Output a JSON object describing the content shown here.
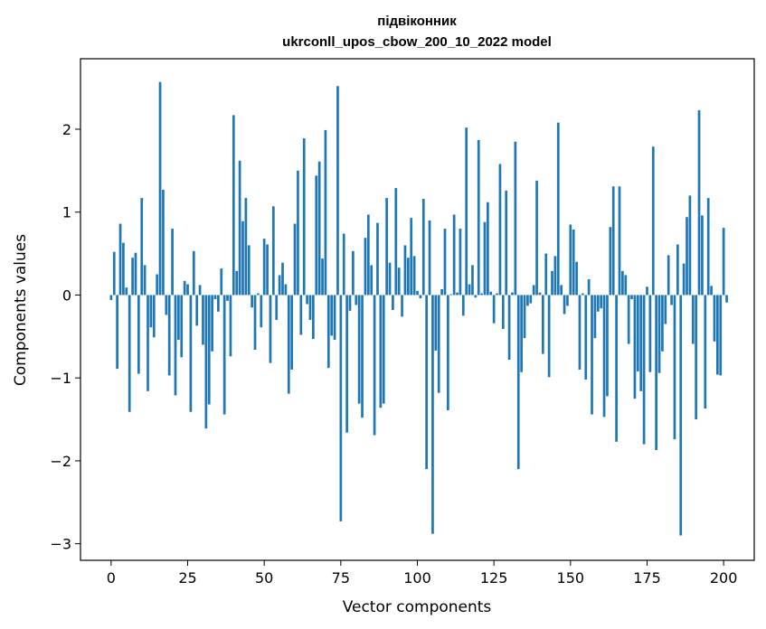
{
  "chart_data": {
    "type": "bar",
    "title_line1": "підвіконник",
    "title_line2": "ukrconll_upos_cbow_200_10_2022 model",
    "xlabel": "Vector components",
    "ylabel": "Components values",
    "xlim": [
      -10,
      210
    ],
    "ylim": [
      -3.2,
      2.85
    ],
    "x_ticks": [
      0,
      25,
      50,
      75,
      100,
      125,
      150,
      175,
      200
    ],
    "x_tick_labels": [
      "0",
      "25",
      "50",
      "75",
      "100",
      "125",
      "150",
      "175",
      "200"
    ],
    "y_ticks": [
      -3,
      -2,
      -1,
      0,
      1,
      2
    ],
    "y_tick_labels": [
      "−3",
      "−2",
      "−1",
      "0",
      "1",
      "2"
    ],
    "bar_color": "#1f77b4",
    "values": [
      -0.06,
      0.52,
      -0.89,
      0.86,
      0.63,
      0.09,
      -1.41,
      0.45,
      0.51,
      -0.95,
      1.17,
      0.36,
      -1.16,
      -0.39,
      -0.51,
      0.25,
      2.57,
      1.27,
      -0.24,
      -0.97,
      0.8,
      -1.21,
      -0.54,
      -0.75,
      0.17,
      0.13,
      -1.41,
      0.53,
      -0.37,
      0.12,
      -0.6,
      -1.61,
      -1.32,
      -0.68,
      -0.05,
      -0.2,
      0.32,
      -1.44,
      -0.07,
      -0.74,
      2.17,
      0.29,
      1.62,
      0.89,
      1.17,
      0.6,
      -0.15,
      -0.66,
      0.02,
      -0.39,
      0.68,
      0.61,
      -0.82,
      1.07,
      -0.3,
      0.24,
      0.39,
      0.13,
      -1.19,
      -0.9,
      0.86,
      1.5,
      -0.48,
      1.89,
      -0.11,
      -0.3,
      -0.53,
      1.44,
      1.61,
      0.44,
      1.99,
      -0.88,
      -0.49,
      -0.54,
      2.52,
      -2.73,
      0.74,
      -1.66,
      -0.19,
      0.53,
      -0.12,
      -1.31,
      -1.48,
      0.69,
      0.97,
      0.36,
      -1.69,
      0.87,
      -1.36,
      -1.31,
      1.17,
      0.39,
      -0.18,
      1.29,
      0.33,
      -0.26,
      0.6,
      0.45,
      0.93,
      0.47,
      0.05,
      -0.04,
      1.16,
      -2.1,
      0.9,
      -2.88,
      -0.67,
      -1.18,
      0.07,
      0.8,
      -1.39,
      0.01,
      0.97,
      0.03,
      0.8,
      -0.25,
      2.02,
      0.13,
      0.36,
      -0.03,
      1.87,
      0.02,
      0.88,
      1.12,
      0.04,
      -0.34,
      0.02,
      1.58,
      -0.41,
      1.26,
      -0.78,
      0.03,
      1.85,
      -2.1,
      -0.93,
      -0.52,
      -0.13,
      -0.1,
      0.12,
      1.38,
      0.03,
      -0.71,
      0.5,
      -0.99,
      0.29,
      0.47,
      2.08,
      0.12,
      -0.23,
      -0.13,
      0.85,
      0.79,
      0.4,
      -0.9,
      0.02,
      -1.02,
      0.19,
      -1.44,
      -0.52,
      -0.2,
      -0.16,
      -1.47,
      -1.22,
      0.82,
      1.31,
      -1.77,
      1.31,
      0.29,
      0.24,
      -0.59,
      -0.05,
      -1.25,
      -0.92,
      -1.16,
      -1.8,
      0.1,
      -0.93,
      1.79,
      -1.87,
      -0.94,
      -0.68,
      -0.35,
      0.48,
      -0.12,
      -1.74,
      0.61,
      -2.9,
      0.38,
      0.94,
      1.2,
      -0.59,
      -1.5,
      2.23,
      0.96,
      -1.37,
      1.17,
      0.11,
      -0.56,
      -0.96,
      -0.97,
      0.81,
      -0.09
    ]
  }
}
